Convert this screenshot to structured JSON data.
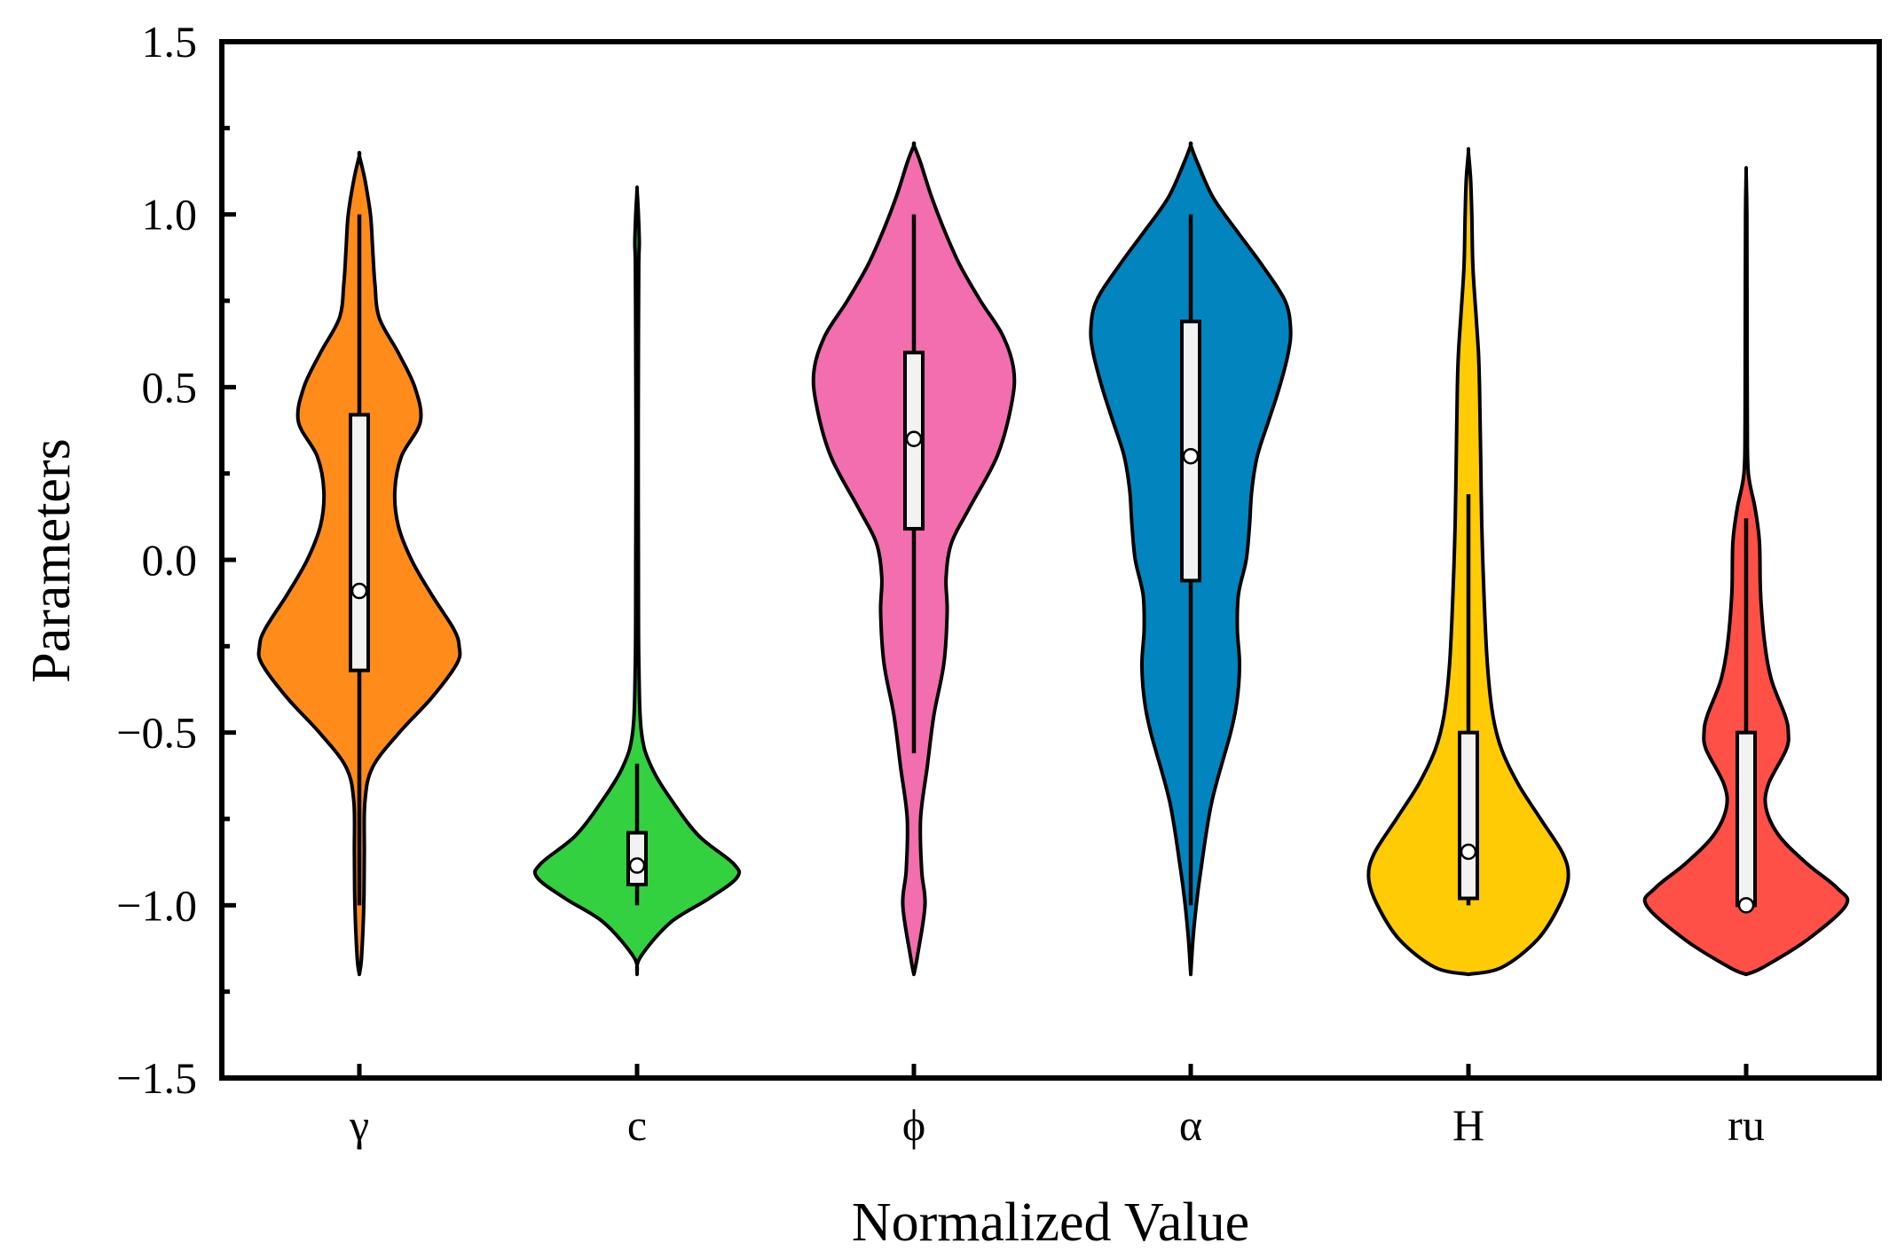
{
  "chart_data": {
    "type": "violin",
    "title": "",
    "xlabel": "Normalized Value",
    "ylabel": "Parameters",
    "ylim": [
      -1.5,
      1.5
    ],
    "yticks": [
      -1.5,
      -1.0,
      -0.5,
      0.0,
      0.5,
      1.0,
      1.5
    ],
    "ytick_labels": [
      "−1.5",
      "−1.0",
      "−0.5",
      "0.0",
      "0.5",
      "1.0",
      "1.5"
    ],
    "categories": [
      "γ",
      "c",
      "ϕ",
      "α",
      "H",
      "ru"
    ],
    "series": [
      {
        "name": "γ",
        "color": "#FF8C1A",
        "density": [
          [
            -1.2,
            0
          ],
          [
            -1.15,
            0.02
          ],
          [
            -1.0,
            0.04
          ],
          [
            -0.85,
            0.045
          ],
          [
            -0.7,
            0.05
          ],
          [
            -0.6,
            0.12
          ],
          [
            -0.5,
            0.36
          ],
          [
            -0.4,
            0.65
          ],
          [
            -0.3,
            0.88
          ],
          [
            -0.25,
            0.9
          ],
          [
            -0.2,
            0.85
          ],
          [
            -0.1,
            0.65
          ],
          [
            0.0,
            0.47
          ],
          [
            0.1,
            0.35
          ],
          [
            0.2,
            0.32
          ],
          [
            0.3,
            0.38
          ],
          [
            0.4,
            0.55
          ],
          [
            0.5,
            0.5
          ],
          [
            0.6,
            0.35
          ],
          [
            0.7,
            0.18
          ],
          [
            0.8,
            0.14
          ],
          [
            0.9,
            0.12
          ],
          [
            1.0,
            0.1
          ],
          [
            1.1,
            0.05
          ],
          [
            1.17,
            0
          ]
        ],
        "whisker": [
          -1.0,
          1.0
        ],
        "box": [
          -0.32,
          0.42
        ],
        "median": -0.09
      },
      {
        "name": "c",
        "color": "#33D13F",
        "density": [
          [
            -1.2,
            0
          ],
          [
            -1.15,
            0.03
          ],
          [
            -1.05,
            0.3
          ],
          [
            -0.98,
            0.65
          ],
          [
            -0.92,
            0.9
          ],
          [
            -0.88,
            0.87
          ],
          [
            -0.8,
            0.56
          ],
          [
            -0.7,
            0.32
          ],
          [
            -0.6,
            0.13
          ],
          [
            -0.5,
            0.04
          ],
          [
            -0.3,
            0.016
          ],
          [
            0.0,
            0.012
          ],
          [
            0.3,
            0.01
          ],
          [
            0.6,
            0.012
          ],
          [
            0.85,
            0.015
          ],
          [
            0.92,
            0.02
          ],
          [
            1.0,
            0.012
          ],
          [
            1.07,
            0
          ]
        ],
        "whisker": [
          -1.0,
          -0.59
        ],
        "box": [
          -0.94,
          -0.79
        ],
        "median": -0.885
      },
      {
        "name": "ϕ",
        "color": "#F26EAE",
        "density": [
          [
            -1.2,
            0
          ],
          [
            -1.15,
            0.03
          ],
          [
            -1.0,
            0.1
          ],
          [
            -0.9,
            0.07
          ],
          [
            -0.75,
            0.06
          ],
          [
            -0.6,
            0.12
          ],
          [
            -0.45,
            0.18
          ],
          [
            -0.3,
            0.27
          ],
          [
            -0.15,
            0.3
          ],
          [
            -0.05,
            0.29
          ],
          [
            0.05,
            0.34
          ],
          [
            0.15,
            0.5
          ],
          [
            0.3,
            0.75
          ],
          [
            0.45,
            0.88
          ],
          [
            0.55,
            0.9
          ],
          [
            0.65,
            0.8
          ],
          [
            0.75,
            0.6
          ],
          [
            0.85,
            0.42
          ],
          [
            0.95,
            0.28
          ],
          [
            1.05,
            0.16
          ],
          [
            1.15,
            0.06
          ],
          [
            1.2,
            0
          ]
        ],
        "whisker": [
          -0.56,
          1.0
        ],
        "box": [
          0.09,
          0.6
        ],
        "median": 0.35
      },
      {
        "name": "α",
        "color": "#0285BE",
        "density": [
          [
            -1.2,
            0
          ],
          [
            -1.1,
            0.02
          ],
          [
            -1.0,
            0.05
          ],
          [
            -0.9,
            0.09
          ],
          [
            -0.7,
            0.19
          ],
          [
            -0.5,
            0.36
          ],
          [
            -0.4,
            0.42
          ],
          [
            -0.3,
            0.44
          ],
          [
            -0.2,
            0.42
          ],
          [
            -0.1,
            0.43
          ],
          [
            0.0,
            0.5
          ],
          [
            0.1,
            0.53
          ],
          [
            0.2,
            0.55
          ],
          [
            0.3,
            0.6
          ],
          [
            0.4,
            0.7
          ],
          [
            0.5,
            0.8
          ],
          [
            0.6,
            0.88
          ],
          [
            0.67,
            0.9
          ],
          [
            0.75,
            0.85
          ],
          [
            0.85,
            0.65
          ],
          [
            0.95,
            0.42
          ],
          [
            1.05,
            0.2
          ],
          [
            1.15,
            0.06
          ],
          [
            1.2,
            0
          ]
        ],
        "whisker": [
          -1.0,
          1.0
        ],
        "box": [
          -0.06,
          0.69
        ],
        "median": 0.3
      },
      {
        "name": "H",
        "color": "#FECB05",
        "density": [
          [
            -1.2,
            0
          ],
          [
            -1.18,
            0.3
          ],
          [
            -1.1,
            0.62
          ],
          [
            -1.0,
            0.82
          ],
          [
            -0.92,
            0.9
          ],
          [
            -0.85,
            0.85
          ],
          [
            -0.75,
            0.65
          ],
          [
            -0.65,
            0.45
          ],
          [
            -0.55,
            0.3
          ],
          [
            -0.45,
            0.22
          ],
          [
            -0.3,
            0.17
          ],
          [
            -0.1,
            0.14
          ],
          [
            0.1,
            0.12
          ],
          [
            0.3,
            0.11
          ],
          [
            0.5,
            0.1
          ],
          [
            0.6,
            0.09
          ],
          [
            0.7,
            0.07
          ],
          [
            0.85,
            0.04
          ],
          [
            1.0,
            0.03
          ],
          [
            1.1,
            0.02
          ],
          [
            1.18,
            0
          ]
        ],
        "whisker": [
          -1.0,
          0.19
        ],
        "box": [
          -0.98,
          -0.5
        ],
        "median": -0.845
      },
      {
        "name": "ru",
        "color": "#FF5047",
        "density": [
          [
            -1.2,
            0
          ],
          [
            -1.18,
            0.15
          ],
          [
            -1.1,
            0.55
          ],
          [
            -1.0,
            0.9
          ],
          [
            -0.95,
            0.82
          ],
          [
            -0.88,
            0.55
          ],
          [
            -0.8,
            0.3
          ],
          [
            -0.72,
            0.18
          ],
          [
            -0.65,
            0.2
          ],
          [
            -0.55,
            0.36
          ],
          [
            -0.5,
            0.38
          ],
          [
            -0.45,
            0.35
          ],
          [
            -0.35,
            0.23
          ],
          [
            -0.25,
            0.17
          ],
          [
            -0.1,
            0.13
          ],
          [
            0.05,
            0.12
          ],
          [
            0.15,
            0.08
          ],
          [
            0.25,
            0.02
          ],
          [
            0.4,
            0.01
          ],
          [
            0.7,
            0.008
          ],
          [
            1.0,
            0.006
          ],
          [
            1.12,
            0
          ]
        ],
        "whisker": [
          -1.0,
          0.12
        ],
        "box": [
          -1.0,
          -0.5
        ],
        "median": -1.0
      }
    ]
  }
}
